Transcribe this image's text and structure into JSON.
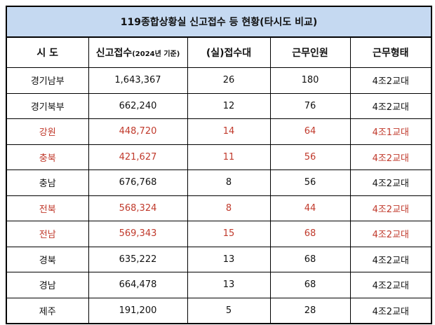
{
  "title": "119종합상황실 신고접수 등 현황(타시도 비교)",
  "headers": {
    "region": "시 도",
    "reports_main": "신고접수",
    "reports_note": "(2024년 기준)",
    "desks": "(실)접수대",
    "staff": "근무인원",
    "shift": "근무형태"
  },
  "highlight_color": "#c0392b",
  "rows": [
    {
      "region": "경기남부",
      "reports": "1,643,367",
      "desks": "26",
      "staff": "180",
      "shift": "4조2교대",
      "highlight": false
    },
    {
      "region": "경기북부",
      "reports": "662,240",
      "desks": "12",
      "staff": "76",
      "shift": "4조2교대",
      "highlight": false
    },
    {
      "region": "강원",
      "reports": "448,720",
      "desks": "14",
      "staff": "64",
      "shift": "4조1교대",
      "highlight": true
    },
    {
      "region": "충북",
      "reports": "421,627",
      "desks": "11",
      "staff": "56",
      "shift": "4조2교대",
      "highlight": true
    },
    {
      "region": "충남",
      "reports": "676,768",
      "desks": "8",
      "staff": "56",
      "shift": "4조2교대",
      "highlight": false
    },
    {
      "region": "전북",
      "reports": "568,324",
      "desks": "8",
      "staff": "44",
      "shift": "4조2교대",
      "highlight": true
    },
    {
      "region": "전남",
      "reports": "569,343",
      "desks": "15",
      "staff": "68",
      "shift": "4조2교대",
      "highlight": true
    },
    {
      "region": "경북",
      "reports": "635,222",
      "desks": "13",
      "staff": "68",
      "shift": "4조2교대",
      "highlight": false
    },
    {
      "region": "경남",
      "reports": "664,478",
      "desks": "13",
      "staff": "68",
      "shift": "4조2교대",
      "highlight": false
    },
    {
      "region": "제주",
      "reports": "191,200",
      "desks": "5",
      "staff": "28",
      "shift": "4조2교대",
      "highlight": false
    }
  ]
}
